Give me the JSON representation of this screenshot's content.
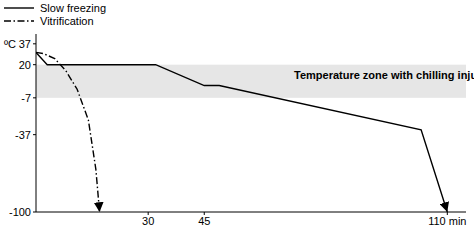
{
  "chart_data": {
    "type": "line",
    "ylabel": "ºC",
    "series": [
      {
        "name": "Slow freezing",
        "color": "#000000",
        "line_style": "solid",
        "x": [
          0,
          3,
          32,
          45,
          49,
          103,
          110
        ],
        "values": [
          30,
          20,
          20,
          3,
          3,
          -33,
          -100
        ]
      },
      {
        "name": "Vitrification",
        "color": "#000000",
        "line_style": "dashdot",
        "x": [
          0,
          2,
          5,
          8,
          11,
          14,
          16,
          17
        ],
        "values": [
          30,
          29,
          25,
          15,
          0,
          -25,
          -65,
          -100
        ]
      }
    ],
    "xlim": [
      0,
      115
    ],
    "xticks": [
      30,
      45,
      {
        "value": 110,
        "label": "110 min"
      }
    ],
    "ylim": [
      -100,
      45
    ],
    "yticks": [
      37,
      20,
      -7,
      -37,
      -100
    ],
    "grid": false,
    "legend": "upper left",
    "bands": [
      {
        "y0": 20,
        "y1": -7,
        "color": "#e6e6e6",
        "label": "Temperature zone with chilling injury"
      }
    ]
  }
}
